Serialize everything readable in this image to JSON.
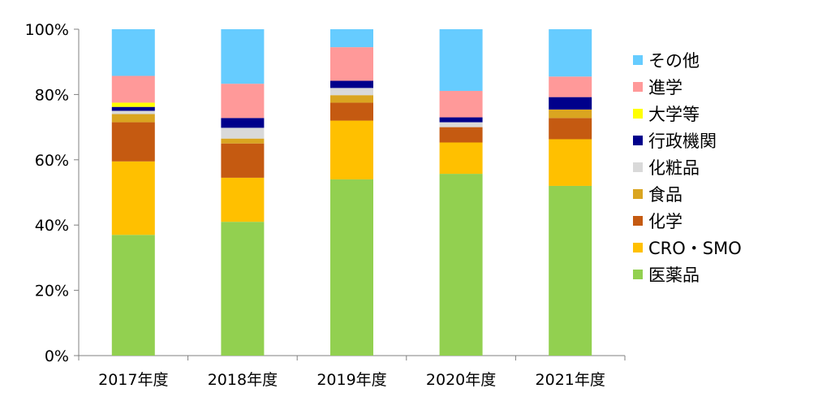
{
  "chart_data": {
    "type": "bar",
    "stacked": true,
    "percent": true,
    "categories": [
      "2017年度",
      "2018年度",
      "2019年度",
      "2020年度",
      "2021年度"
    ],
    "ylim": [
      0,
      100
    ],
    "yticks": [
      0,
      20,
      40,
      60,
      80,
      100
    ],
    "ytick_labels": [
      "0%",
      "20%",
      "40%",
      "60%",
      "80%",
      "100%"
    ],
    "grid": false,
    "legend_position": "right",
    "series": [
      {
        "name": "医薬品",
        "color": "#92D050",
        "values": [
          37,
          41,
          54,
          55.7,
          52
        ]
      },
      {
        "name": "CRO・SMO",
        "color": "#FFC000",
        "values": [
          22.5,
          13.5,
          18,
          9.6,
          14.3
        ]
      },
      {
        "name": "化学",
        "color": "#C55A11",
        "values": [
          12,
          10.5,
          5.5,
          4.7,
          6.5
        ]
      },
      {
        "name": "食品",
        "color": "#DAA520",
        "values": [
          2.5,
          1.5,
          2.3,
          0,
          2.6
        ]
      },
      {
        "name": "化粧品",
        "color": "#D9D9D9",
        "values": [
          1,
          3.3,
          2.2,
          1.5,
          0
        ]
      },
      {
        "name": "行政機関",
        "color": "#00008B",
        "values": [
          1.2,
          3,
          2.2,
          1.5,
          3.8
        ]
      },
      {
        "name": "大学等",
        "color": "#FFFF00",
        "values": [
          1.3,
          0,
          0,
          0,
          0
        ]
      },
      {
        "name": "進学",
        "color": "#FF9999",
        "values": [
          8.2,
          10.5,
          10.3,
          8.1,
          6.3
        ]
      },
      {
        "name": "その他",
        "color": "#66CCFF",
        "values": [
          14.3,
          16.7,
          5.5,
          18.9,
          14.5
        ]
      }
    ]
  }
}
